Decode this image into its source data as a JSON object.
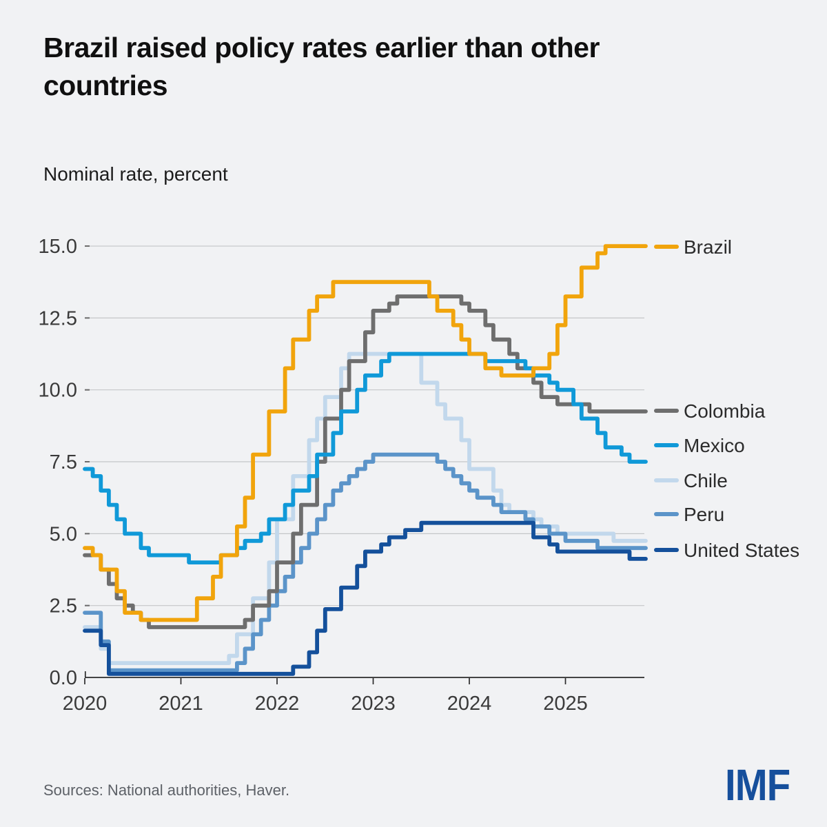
{
  "header": {
    "title": "Brazil raised policy rates earlier than other\ncountries",
    "subtitle": "Nominal rate, percent"
  },
  "footer": {
    "sources": "Sources: National authorities, Haver.",
    "logo": "IMF",
    "logo_color": "#164F9C"
  },
  "chart_data": {
    "type": "line",
    "step": true,
    "title": "Brazil raised policy rates earlier than other countries",
    "ylabel": "Nominal rate, percent",
    "xlabel": "",
    "frequency": "monthly",
    "x_start": "2020-01",
    "x_end": "2025-11",
    "x_tick_labels": [
      "2020",
      "2021",
      "2022",
      "2023",
      "2024",
      "2025"
    ],
    "y_ticks": [
      0.0,
      2.5,
      5.0,
      7.5,
      10.0,
      12.5,
      15.0
    ],
    "ylim": [
      0,
      15
    ],
    "grid": "horizontal",
    "legend_position": "right",
    "series": [
      {
        "name": "Brazil",
        "color": "#F1A40C",
        "final_value": 15.0,
        "values": [
          4.5,
          4.25,
          3.75,
          3.75,
          3.0,
          2.25,
          2.25,
          2.0,
          2.0,
          2.0,
          2.0,
          2.0,
          2.0,
          2.0,
          2.75,
          2.75,
          3.5,
          4.25,
          4.25,
          5.25,
          6.25,
          7.75,
          7.75,
          9.25,
          9.25,
          10.75,
          11.75,
          11.75,
          12.75,
          13.25,
          13.25,
          13.75,
          13.75,
          13.75,
          13.75,
          13.75,
          13.75,
          13.75,
          13.75,
          13.75,
          13.75,
          13.75,
          13.75,
          13.25,
          12.75,
          12.75,
          12.25,
          11.75,
          11.25,
          11.25,
          10.75,
          10.75,
          10.5,
          10.5,
          10.5,
          10.5,
          10.75,
          10.75,
          11.25,
          12.25,
          13.25,
          13.25,
          14.25,
          14.25,
          14.75,
          15.0,
          15.0,
          15.0,
          15.0,
          15.0,
          15.0
        ]
      },
      {
        "name": "Colombia",
        "color": "#6E6E6E",
        "final_value": 9.25,
        "values": [
          4.25,
          4.25,
          3.75,
          3.25,
          2.75,
          2.5,
          2.25,
          2.0,
          1.75,
          1.75,
          1.75,
          1.75,
          1.75,
          1.75,
          1.75,
          1.75,
          1.75,
          1.75,
          1.75,
          1.75,
          2.0,
          2.5,
          2.5,
          3.0,
          4.0,
          4.0,
          5.0,
          6.0,
          6.0,
          7.5,
          9.0,
          9.0,
          10.0,
          11.0,
          11.0,
          12.0,
          12.75,
          12.75,
          13.0,
          13.25,
          13.25,
          13.25,
          13.25,
          13.25,
          13.25,
          13.25,
          13.25,
          13.0,
          12.75,
          12.75,
          12.25,
          11.75,
          11.75,
          11.25,
          10.75,
          10.75,
          10.25,
          9.75,
          9.75,
          9.5,
          9.5,
          9.5,
          9.5,
          9.25,
          9.25,
          9.25,
          9.25,
          9.25,
          9.25,
          9.25,
          9.25
        ]
      },
      {
        "name": "Mexico",
        "color": "#1099D8",
        "final_value": 7.5,
        "values": [
          7.25,
          7.0,
          6.5,
          6.0,
          5.5,
          5.0,
          5.0,
          4.5,
          4.25,
          4.25,
          4.25,
          4.25,
          4.25,
          4.0,
          4.0,
          4.0,
          4.0,
          4.25,
          4.25,
          4.5,
          4.75,
          4.75,
          5.0,
          5.5,
          5.5,
          6.0,
          6.5,
          6.5,
          7.0,
          7.75,
          7.75,
          8.5,
          9.25,
          9.25,
          10.0,
          10.5,
          10.5,
          11.0,
          11.25,
          11.25,
          11.25,
          11.25,
          11.25,
          11.25,
          11.25,
          11.25,
          11.25,
          11.25,
          11.25,
          11.25,
          11.0,
          11.0,
          11.0,
          11.0,
          11.0,
          10.75,
          10.5,
          10.5,
          10.25,
          10.0,
          10.0,
          9.5,
          9.0,
          9.0,
          8.5,
          8.0,
          8.0,
          7.75,
          7.5,
          7.5,
          7.5
        ]
      },
      {
        "name": "Chile",
        "color": "#C2D8EC",
        "final_value": 4.75,
        "values": [
          1.75,
          1.75,
          1.0,
          0.5,
          0.5,
          0.5,
          0.5,
          0.5,
          0.5,
          0.5,
          0.5,
          0.5,
          0.5,
          0.5,
          0.5,
          0.5,
          0.5,
          0.5,
          0.75,
          1.5,
          1.5,
          2.75,
          2.75,
          4.0,
          5.5,
          5.5,
          7.0,
          7.0,
          8.25,
          9.0,
          9.75,
          9.75,
          10.75,
          11.25,
          11.25,
          11.25,
          11.25,
          11.25,
          11.25,
          11.25,
          11.25,
          11.25,
          10.25,
          10.25,
          9.5,
          9.0,
          9.0,
          8.25,
          7.25,
          7.25,
          7.25,
          6.5,
          6.0,
          5.75,
          5.75,
          5.75,
          5.5,
          5.25,
          5.25,
          5.0,
          5.0,
          5.0,
          5.0,
          5.0,
          5.0,
          5.0,
          4.75,
          4.75,
          4.75,
          4.75,
          4.75
        ]
      },
      {
        "name": "Peru",
        "color": "#5B94C9",
        "final_value": 4.5,
        "values": [
          2.25,
          2.25,
          1.25,
          0.25,
          0.25,
          0.25,
          0.25,
          0.25,
          0.25,
          0.25,
          0.25,
          0.25,
          0.25,
          0.25,
          0.25,
          0.25,
          0.25,
          0.25,
          0.25,
          0.5,
          1.0,
          1.5,
          2.0,
          2.5,
          3.0,
          3.5,
          4.0,
          4.5,
          5.0,
          5.5,
          6.0,
          6.5,
          6.75,
          7.0,
          7.25,
          7.5,
          7.75,
          7.75,
          7.75,
          7.75,
          7.75,
          7.75,
          7.75,
          7.75,
          7.5,
          7.25,
          7.0,
          6.75,
          6.5,
          6.25,
          6.25,
          6.0,
          5.75,
          5.75,
          5.75,
          5.5,
          5.25,
          5.25,
          5.0,
          5.0,
          4.75,
          4.75,
          4.75,
          4.75,
          4.5,
          4.5,
          4.5,
          4.5,
          4.5,
          4.5,
          4.5
        ]
      },
      {
        "name": "United States",
        "color": "#14509B",
        "final_value": 4.125,
        "values": [
          1.625,
          1.625,
          1.125,
          0.125,
          0.125,
          0.125,
          0.125,
          0.125,
          0.125,
          0.125,
          0.125,
          0.125,
          0.125,
          0.125,
          0.125,
          0.125,
          0.125,
          0.125,
          0.125,
          0.125,
          0.125,
          0.125,
          0.125,
          0.125,
          0.125,
          0.125,
          0.375,
          0.375,
          0.875,
          1.625,
          2.375,
          2.375,
          3.125,
          3.125,
          3.875,
          4.375,
          4.375,
          4.625,
          4.875,
          4.875,
          5.125,
          5.125,
          5.375,
          5.375,
          5.375,
          5.375,
          5.375,
          5.375,
          5.375,
          5.375,
          5.375,
          5.375,
          5.375,
          5.375,
          5.375,
          5.375,
          4.875,
          4.875,
          4.625,
          4.375,
          4.375,
          4.375,
          4.375,
          4.375,
          4.375,
          4.375,
          4.375,
          4.375,
          4.125,
          4.125,
          4.125
        ]
      }
    ]
  }
}
